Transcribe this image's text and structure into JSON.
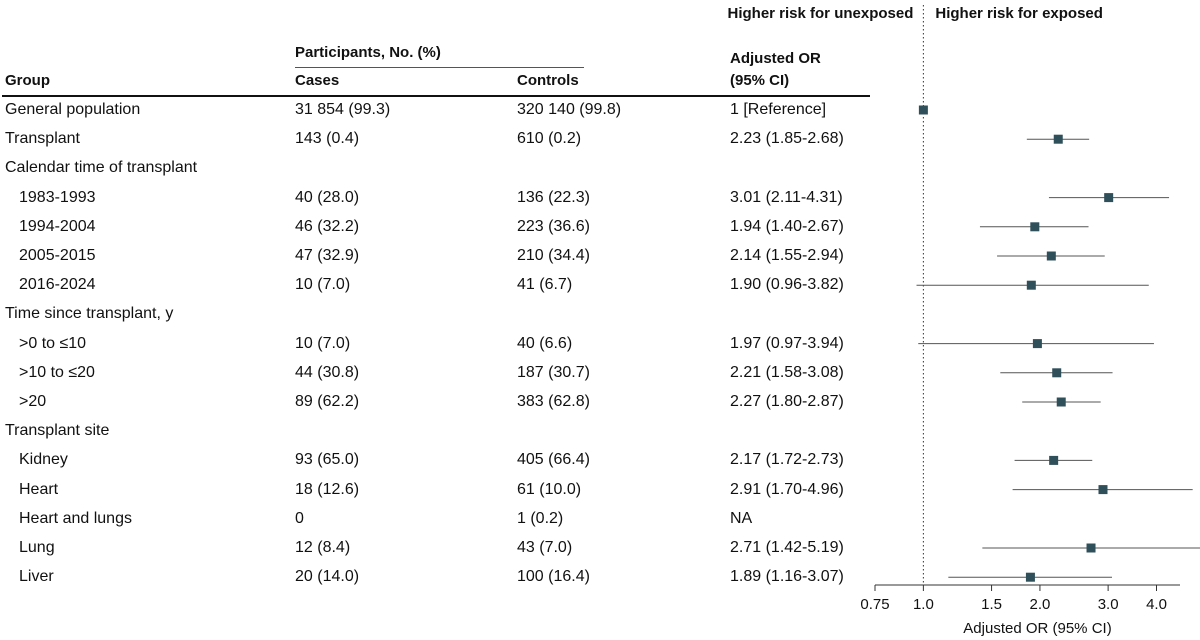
{
  "table": {
    "header": {
      "group": "Group",
      "participants": "Participants, No. (%)",
      "cases": "Cases",
      "controls": "Controls",
      "or_line1": "Adjusted OR",
      "or_line2": "(95% CI)"
    },
    "rows": [
      {
        "group": "General population",
        "cases": "31 854 (99.3)",
        "controls": "320 140 (99.8)",
        "or": "1 [Reference]",
        "indent": false
      },
      {
        "group": "Transplant",
        "cases": "143 (0.4)",
        "controls": "610 (0.2)",
        "or": "2.23 (1.85-2.68)",
        "indent": false
      },
      {
        "group": "Calendar time of transplant",
        "cases": "",
        "controls": "",
        "or": "",
        "indent": false
      },
      {
        "group": "1983-1993",
        "cases": "40 (28.0)",
        "controls": "136 (22.3)",
        "or": "3.01 (2.11-4.31)",
        "indent": true
      },
      {
        "group": "1994-2004",
        "cases": "46 (32.2)",
        "controls": "223 (36.6)",
        "or": "1.94 (1.40-2.67)",
        "indent": true
      },
      {
        "group": "2005-2015",
        "cases": "47 (32.9)",
        "controls": "210 (34.4)",
        "or": "2.14 (1.55-2.94)",
        "indent": true
      },
      {
        "group": "2016-2024",
        "cases": "10 (7.0)",
        "controls": "41 (6.7)",
        "or": "1.90 (0.96-3.82)",
        "indent": true
      },
      {
        "group": "Time since transplant, y",
        "cases": "",
        "controls": "",
        "or": "",
        "indent": false
      },
      {
        "group": ">0 to ≤10",
        "cases": "10 (7.0)",
        "controls": "40 (6.6)",
        "or": "1.97 (0.97-3.94)",
        "indent": true
      },
      {
        "group": ">10 to ≤20",
        "cases": "44 (30.8)",
        "controls": "187 (30.7)",
        "or": "2.21 (1.58-3.08)",
        "indent": true
      },
      {
        "group": ">20",
        "cases": "89 (62.2)",
        "controls": "383 (62.8)",
        "or": "2.27 (1.80-2.87)",
        "indent": true
      },
      {
        "group": "Transplant site",
        "cases": "",
        "controls": "",
        "or": "",
        "indent": false
      },
      {
        "group": "Kidney",
        "cases": "93 (65.0)",
        "controls": "405 (66.4)",
        "or": "2.17 (1.72-2.73)",
        "indent": true
      },
      {
        "group": "Heart",
        "cases": "18 (12.6)",
        "controls": "61 (10.0)",
        "or": "2.91 (1.70-4.96)",
        "indent": true
      },
      {
        "group": "Heart and lungs",
        "cases": "0",
        "controls": "1 (0.2)",
        "or": "NA",
        "indent": true
      },
      {
        "group": "Lung",
        "cases": "12 (8.4)",
        "controls": "43 (7.0)",
        "or": "2.71 (1.42-5.19)",
        "indent": true
      },
      {
        "group": "Liver",
        "cases": "20 (14.0)",
        "controls": "100 (16.4)",
        "or": "1.89 (1.16-3.07)",
        "indent": true
      }
    ]
  },
  "chart_data": {
    "type": "forest",
    "scale": "log",
    "xlabel": "Adjusted OR (95% CI)",
    "xlim": [
      0.75,
      4.6
    ],
    "xticks": [
      0.75,
      1.0,
      1.5,
      2.0,
      3.0,
      4.0
    ],
    "xtick_labels": [
      "0.75",
      "1.0",
      "1.5",
      "2.0",
      "3.0",
      "4.0"
    ],
    "reference_line": 1.0,
    "left_label": "Higher risk for unexposed",
    "right_label": "Higher risk for exposed",
    "points": [
      {
        "row": 0,
        "or": 1.0,
        "lo": null,
        "hi": null
      },
      {
        "row": 1,
        "or": 2.23,
        "lo": 1.85,
        "hi": 2.68
      },
      {
        "row": 3,
        "or": 3.01,
        "lo": 2.11,
        "hi": 4.31
      },
      {
        "row": 4,
        "or": 1.94,
        "lo": 1.4,
        "hi": 2.67
      },
      {
        "row": 5,
        "or": 2.14,
        "lo": 1.55,
        "hi": 2.94
      },
      {
        "row": 6,
        "or": 1.9,
        "lo": 0.96,
        "hi": 3.82
      },
      {
        "row": 8,
        "or": 1.97,
        "lo": 0.97,
        "hi": 3.94
      },
      {
        "row": 9,
        "or": 2.21,
        "lo": 1.58,
        "hi": 3.08
      },
      {
        "row": 10,
        "or": 2.27,
        "lo": 1.8,
        "hi": 2.87
      },
      {
        "row": 12,
        "or": 2.17,
        "lo": 1.72,
        "hi": 2.73
      },
      {
        "row": 13,
        "or": 2.91,
        "lo": 1.7,
        "hi": 4.96
      },
      {
        "row": 15,
        "or": 2.71,
        "lo": 1.42,
        "hi": 5.19
      },
      {
        "row": 16,
        "or": 1.89,
        "lo": 1.16,
        "hi": 3.07
      }
    ],
    "colors": {
      "marker": "#2f4f5a",
      "whisker": "#555555",
      "axis": "#333333"
    }
  }
}
